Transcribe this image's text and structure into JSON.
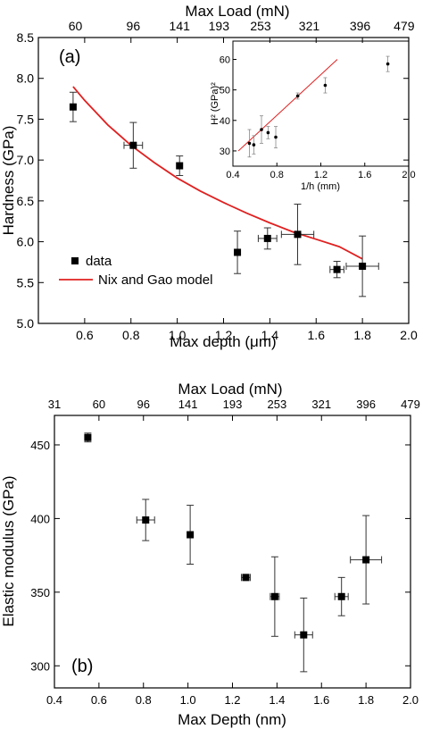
{
  "chart_data": [
    {
      "panel_label": "(a)",
      "type": "scatter",
      "xlabel": "Max depth (μm)",
      "ylabel": "Hardness (GPa)",
      "top_axis_label": "Max Load (mN)",
      "xlim": [
        0.4,
        2.0
      ],
      "ylim": [
        5.0,
        8.5
      ],
      "x_ticks": [
        "0.6",
        "0.8",
        "1.0",
        "1.2",
        "1.4",
        "1.6",
        "1.8",
        "2.0"
      ],
      "y_ticks": [
        "5.0",
        "5.5",
        "6.0",
        "6.5",
        "7.0",
        "7.5",
        "8.0",
        "8.5"
      ],
      "top_ticks": [
        {
          "x": 0.56,
          "label": "60"
        },
        {
          "x": 0.81,
          "label": "96"
        },
        {
          "x": 1.01,
          "label": "141"
        },
        {
          "x": 1.18,
          "label": "193"
        },
        {
          "x": 1.36,
          "label": "253"
        },
        {
          "x": 1.57,
          "label": "321"
        },
        {
          "x": 1.79,
          "label": "396"
        },
        {
          "x": 1.98,
          "label": "479"
        }
      ],
      "legend": {
        "position": "bottom-left",
        "entries": [
          "data",
          "Nix and Gao model"
        ]
      },
      "series": [
        {
          "name": "data",
          "marker": "square",
          "points": [
            {
              "x": 0.55,
              "y": 7.65,
              "xerr": 0.0,
              "yerr": 0.18
            },
            {
              "x": 0.81,
              "y": 7.18,
              "xerr": 0.04,
              "yerr": 0.28
            },
            {
              "x": 1.01,
              "y": 6.93,
              "xerr": 0.0,
              "yerr": 0.12
            },
            {
              "x": 1.26,
              "y": 5.87,
              "xerr": 0.0,
              "yerr": 0.26
            },
            {
              "x": 1.39,
              "y": 6.04,
              "xerr": 0.04,
              "yerr": 0.13
            },
            {
              "x": 1.52,
              "y": 6.09,
              "xerr": 0.07,
              "yerr": 0.37
            },
            {
              "x": 1.69,
              "y": 5.66,
              "xerr": 0.03,
              "yerr": 0.1
            },
            {
              "x": 1.8,
              "y": 5.7,
              "xerr": 0.07,
              "yerr": 0.37
            }
          ]
        },
        {
          "name": "Nix and Gao model",
          "type": "line",
          "color": "#e02020",
          "x": [
            0.55,
            0.6,
            0.7,
            0.8,
            0.9,
            1.0,
            1.1,
            1.2,
            1.3,
            1.4,
            1.5,
            1.6,
            1.7,
            1.8
          ],
          "y": [
            7.9,
            7.73,
            7.43,
            7.18,
            6.97,
            6.78,
            6.62,
            6.48,
            6.35,
            6.23,
            6.12,
            6.03,
            5.94,
            5.79
          ]
        }
      ],
      "inset": {
        "type": "scatter",
        "xlabel": "1/h (mm)",
        "ylabel": "H² (GPa)²",
        "xlim": [
          0.4,
          2.0
        ],
        "ylim": [
          25,
          66
        ],
        "x_ticks": [
          "0.4",
          "0.8",
          "1.2",
          "1.6",
          "2.0"
        ],
        "y_ticks": [
          "30",
          "40",
          "50",
          "60"
        ],
        "points": [
          {
            "x": 0.55,
            "y": 32.5,
            "yerr": 4.5
          },
          {
            "x": 0.59,
            "y": 32.0,
            "yerr": 3.0
          },
          {
            "x": 0.66,
            "y": 37.0,
            "yerr": 4.5
          },
          {
            "x": 0.72,
            "y": 36.0,
            "yerr": 2.0
          },
          {
            "x": 0.79,
            "y": 34.5,
            "yerr": 3.5
          },
          {
            "x": 0.99,
            "y": 48.0,
            "yerr": 1.0
          },
          {
            "x": 1.24,
            "y": 51.5,
            "yerr": 2.5
          },
          {
            "x": 1.81,
            "y": 58.5,
            "yerr": 2.5
          }
        ],
        "fit_line": {
          "color": "#e02020",
          "x": [
            0.45,
            1.35
          ],
          "y": [
            30.0,
            60.0
          ]
        }
      }
    },
    {
      "panel_label": "(b)",
      "type": "scatter",
      "xlabel": "Max Depth (nm)",
      "ylabel": "Elastic modulus (GPa)",
      "top_axis_label": "Max Load (mN)",
      "xlim": [
        0.4,
        2.0
      ],
      "ylim": [
        285,
        470
      ],
      "x_ticks": [
        "0.4",
        "0.6",
        "0.8",
        "1.0",
        "1.2",
        "1.4",
        "1.6",
        "1.8",
        "2.0"
      ],
      "y_ticks": [
        "300",
        "350",
        "400",
        "450"
      ],
      "top_ticks": [
        {
          "x": 0.4,
          "label": "31"
        },
        {
          "x": 0.6,
          "label": "60"
        },
        {
          "x": 0.8,
          "label": "96"
        },
        {
          "x": 1.0,
          "label": "141"
        },
        {
          "x": 1.2,
          "label": "193"
        },
        {
          "x": 1.4,
          "label": "253"
        },
        {
          "x": 1.6,
          "label": "321"
        },
        {
          "x": 1.8,
          "label": "396"
        },
        {
          "x": 2.0,
          "label": "479"
        }
      ],
      "series": [
        {
          "name": "data",
          "marker": "square",
          "points": [
            {
              "x": 0.55,
              "y": 455,
              "xerr": 0.0,
              "yerr": 3
            },
            {
              "x": 0.81,
              "y": 399,
              "xerr": 0.04,
              "yerr": 14
            },
            {
              "x": 1.01,
              "y": 389,
              "xerr": 0.0,
              "yerr": 20
            },
            {
              "x": 1.26,
              "y": 360,
              "xerr": 0.02,
              "yerr": 2
            },
            {
              "x": 1.39,
              "y": 347,
              "xerr": 0.02,
              "yerr": 27
            },
            {
              "x": 1.52,
              "y": 321,
              "xerr": 0.04,
              "yerr": 25
            },
            {
              "x": 1.69,
              "y": 347,
              "xerr": 0.03,
              "yerr": 13
            },
            {
              "x": 1.8,
              "y": 372,
              "xerr": 0.07,
              "yerr": 30
            }
          ]
        }
      ]
    }
  ]
}
